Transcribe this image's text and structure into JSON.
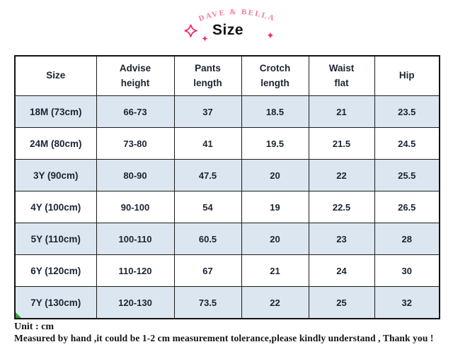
{
  "header": {
    "brand": "DAVE & BELLA",
    "title": "Size"
  },
  "chart_data": {
    "type": "table",
    "title": "Size",
    "unit": "cm",
    "columns": [
      "Size",
      "Advise height",
      "Pants length",
      "Crotch length",
      "Waist flat",
      "Hip"
    ],
    "rows": [
      [
        "18M (73cm)",
        "66-73",
        "37",
        "18.5",
        "21",
        "23.5"
      ],
      [
        "24M (80cm)",
        "73-80",
        "41",
        "19.5",
        "21.5",
        "24.5"
      ],
      [
        "3Y (90cm)",
        "80-90",
        "47.5",
        "20",
        "22",
        "25.5"
      ],
      [
        "4Y (100cm)",
        "90-100",
        "54",
        "19",
        "22.5",
        "26.5"
      ],
      [
        "5Y (110cm)",
        "100-110",
        "60.5",
        "20",
        "23",
        "28"
      ],
      [
        "6Y (120cm)",
        "110-120",
        "67",
        "21",
        "24",
        "30"
      ],
      [
        "7Y (130cm)",
        "120-130",
        "73.5",
        "22",
        "25",
        "32"
      ]
    ]
  },
  "footer": {
    "unit": "Unit : cm",
    "note": "Measured by hand ,it could be 1-2 cm measurement tolerance,please kindly understand , Thank you !"
  },
  "icons": {
    "sparkle_large": "four-pointed-star-outline",
    "sparkle_small": "four-pointed-star-filled"
  },
  "colors": {
    "brand_pink": "#f37ba3",
    "sparkle_pink": "#ee2d72",
    "row_alt_blue": "#dce6f1",
    "row_white": "#ffffff",
    "table_border": "#1c1c1c",
    "table_text": "#1c2433",
    "corner_marker_green": "#2da12d"
  }
}
